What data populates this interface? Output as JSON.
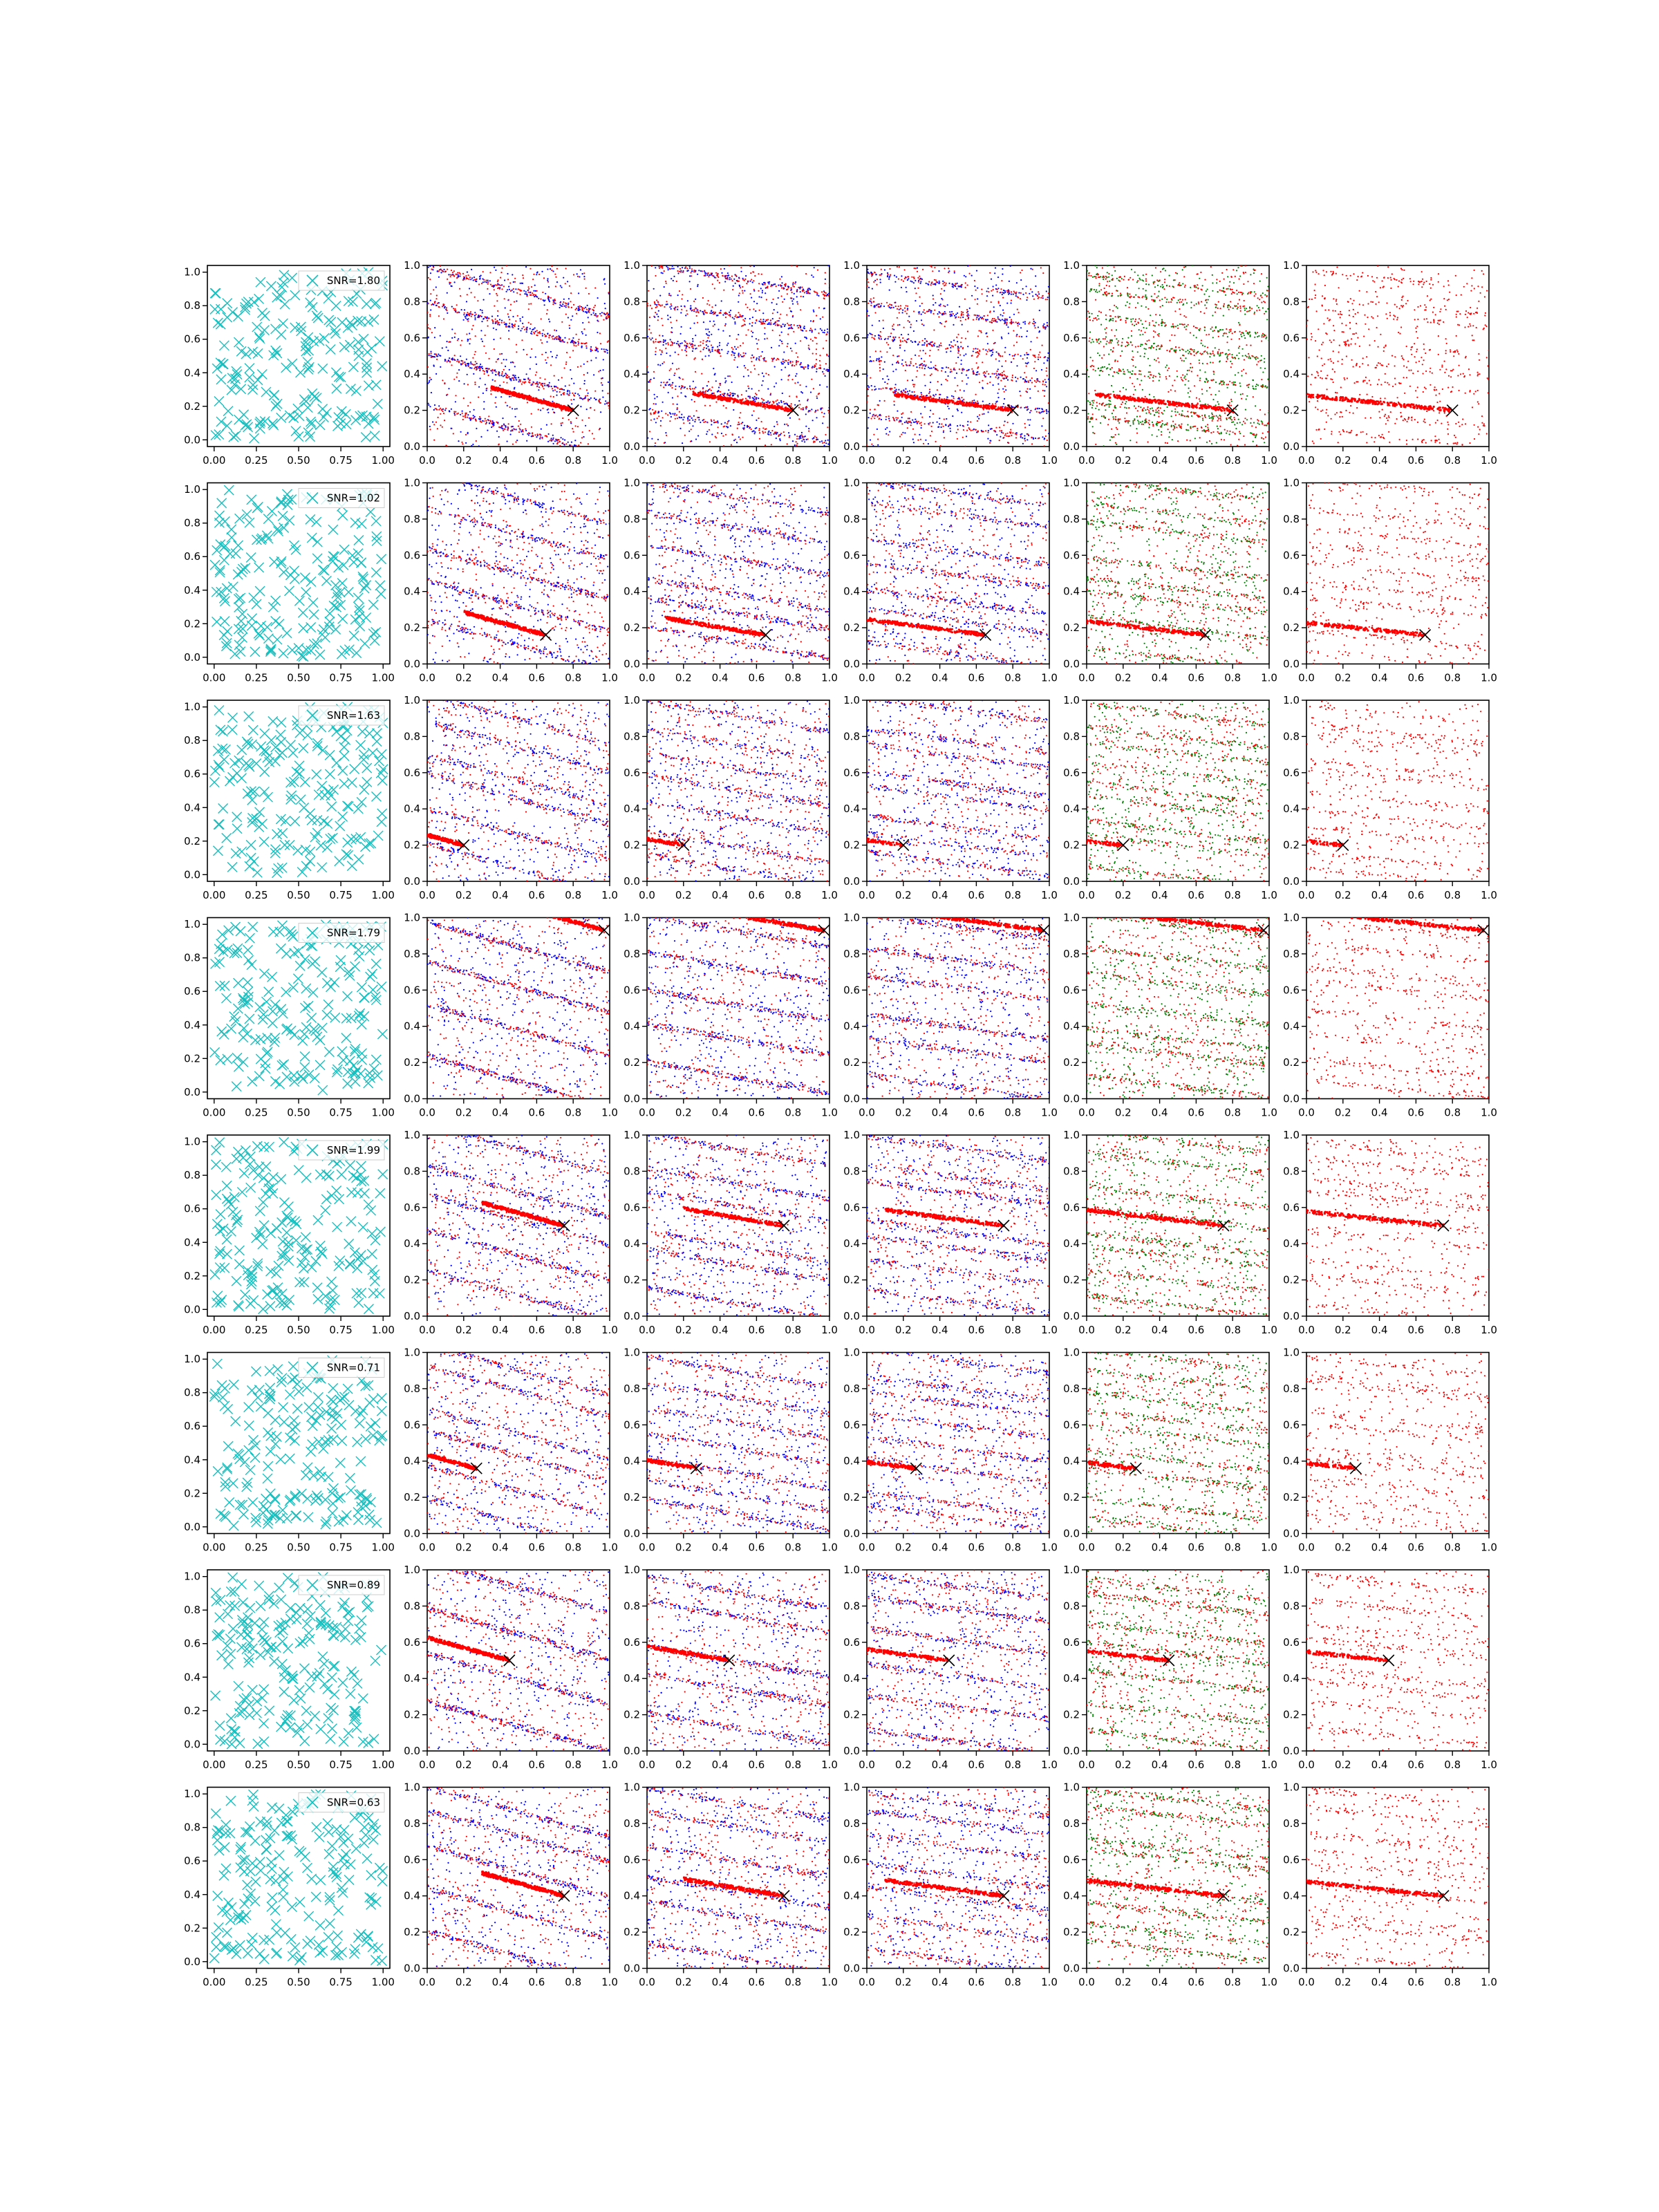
{
  "figure": {
    "rows": 8,
    "columns": 6,
    "colors": {
      "cyan": "#17bfbf",
      "red": "#ff0000",
      "blue": "#0000ff",
      "green": "#008000",
      "marker": "#000000",
      "axes": "#000000"
    }
  },
  "chart_data": {
    "type": "scatter",
    "grid": false,
    "first_column": {
      "marker": "x",
      "color": "cyan",
      "xlim": [
        -0.04,
        1.04
      ],
      "ylim": [
        -0.04,
        1.04
      ],
      "xticks": [
        "0.00",
        "0.25",
        "0.50",
        "0.75",
        "1.00"
      ],
      "yticks": [
        "0.0",
        "0.2",
        "0.4",
        "0.6",
        "0.8",
        "1.0"
      ],
      "legend_placement": "upper right",
      "points_per_panel": 200
    },
    "other_columns": {
      "xlim": [
        0,
        1
      ],
      "ylim": [
        0,
        1
      ],
      "xticks": [
        "0.0",
        "0.2",
        "0.4",
        "0.6",
        "0.8",
        "1.0"
      ],
      "yticks": [
        "0.0",
        "0.2",
        "0.4",
        "0.6",
        "0.8",
        "1.0"
      ],
      "point_colors": [
        [
          "red",
          "blue"
        ],
        [
          "red",
          "blue"
        ],
        [
          "red",
          "blue"
        ],
        [
          "red",
          "green"
        ],
        [
          "red"
        ]
      ],
      "target_marker": "x"
    },
    "rows": [
      {
        "snr_label": "SNR=1.80",
        "target": [
          0.8,
          0.2
        ]
      },
      {
        "snr_label": "SNR=1.02",
        "target": [
          0.65,
          0.16
        ]
      },
      {
        "snr_label": "SNR=1.63",
        "target": [
          0.2,
          0.2
        ]
      },
      {
        "snr_label": "SNR=1.79",
        "target": [
          0.97,
          0.93
        ]
      },
      {
        "snr_label": "SNR=1.99",
        "target": [
          0.75,
          0.5
        ]
      },
      {
        "snr_label": "SNR=0.71",
        "target": [
          0.27,
          0.36
        ]
      },
      {
        "snr_label": "SNR=0.89",
        "target": [
          0.45,
          0.5
        ]
      },
      {
        "snr_label": "SNR=0.63",
        "target": [
          0.75,
          0.4
        ]
      }
    ]
  }
}
